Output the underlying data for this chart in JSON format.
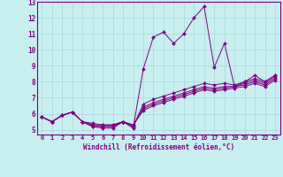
{
  "xlabel": "Windchill (Refroidissement éolien,°C)",
  "background_color": "#c8eef0",
  "line_color": "#800080",
  "grid_color": "#a8d8dc",
  "xmin": -0.5,
  "xmax": 23.5,
  "ymin": 4.7,
  "ymax": 13.0,
  "yticks": [
    5,
    6,
    7,
    8,
    9,
    10,
    11,
    12,
    13
  ],
  "xticks": [
    0,
    1,
    2,
    3,
    4,
    5,
    6,
    7,
    8,
    9,
    10,
    11,
    12,
    13,
    14,
    15,
    16,
    17,
    18,
    19,
    20,
    21,
    22,
    23
  ],
  "lines": [
    [
      5.8,
      5.5,
      5.9,
      6.1,
      5.5,
      5.2,
      5.1,
      5.1,
      5.5,
      5.1,
      8.8,
      10.8,
      11.1,
      10.4,
      11.0,
      12.0,
      12.7,
      8.9,
      10.4,
      7.7,
      8.0,
      8.4,
      8.0,
      8.4
    ],
    [
      5.8,
      5.5,
      5.9,
      6.1,
      5.5,
      5.2,
      5.2,
      5.2,
      5.5,
      5.2,
      6.6,
      6.9,
      7.1,
      7.3,
      7.5,
      7.7,
      7.9,
      7.8,
      7.9,
      7.8,
      8.0,
      8.2,
      8.0,
      8.4
    ],
    [
      5.8,
      5.5,
      5.9,
      6.1,
      5.5,
      5.3,
      5.2,
      5.2,
      5.5,
      5.2,
      6.4,
      6.7,
      6.9,
      7.1,
      7.3,
      7.5,
      7.7,
      7.6,
      7.7,
      7.7,
      7.9,
      8.1,
      7.9,
      8.3
    ],
    [
      5.8,
      5.5,
      5.9,
      6.1,
      5.5,
      5.3,
      5.3,
      5.3,
      5.5,
      5.3,
      6.3,
      6.6,
      6.8,
      7.0,
      7.2,
      7.4,
      7.6,
      7.5,
      7.6,
      7.7,
      7.8,
      8.0,
      7.8,
      8.2
    ],
    [
      5.8,
      5.5,
      5.9,
      6.1,
      5.5,
      5.4,
      5.3,
      5.3,
      5.5,
      5.3,
      6.2,
      6.5,
      6.7,
      6.9,
      7.1,
      7.3,
      7.5,
      7.4,
      7.5,
      7.6,
      7.7,
      7.9,
      7.7,
      8.1
    ]
  ]
}
